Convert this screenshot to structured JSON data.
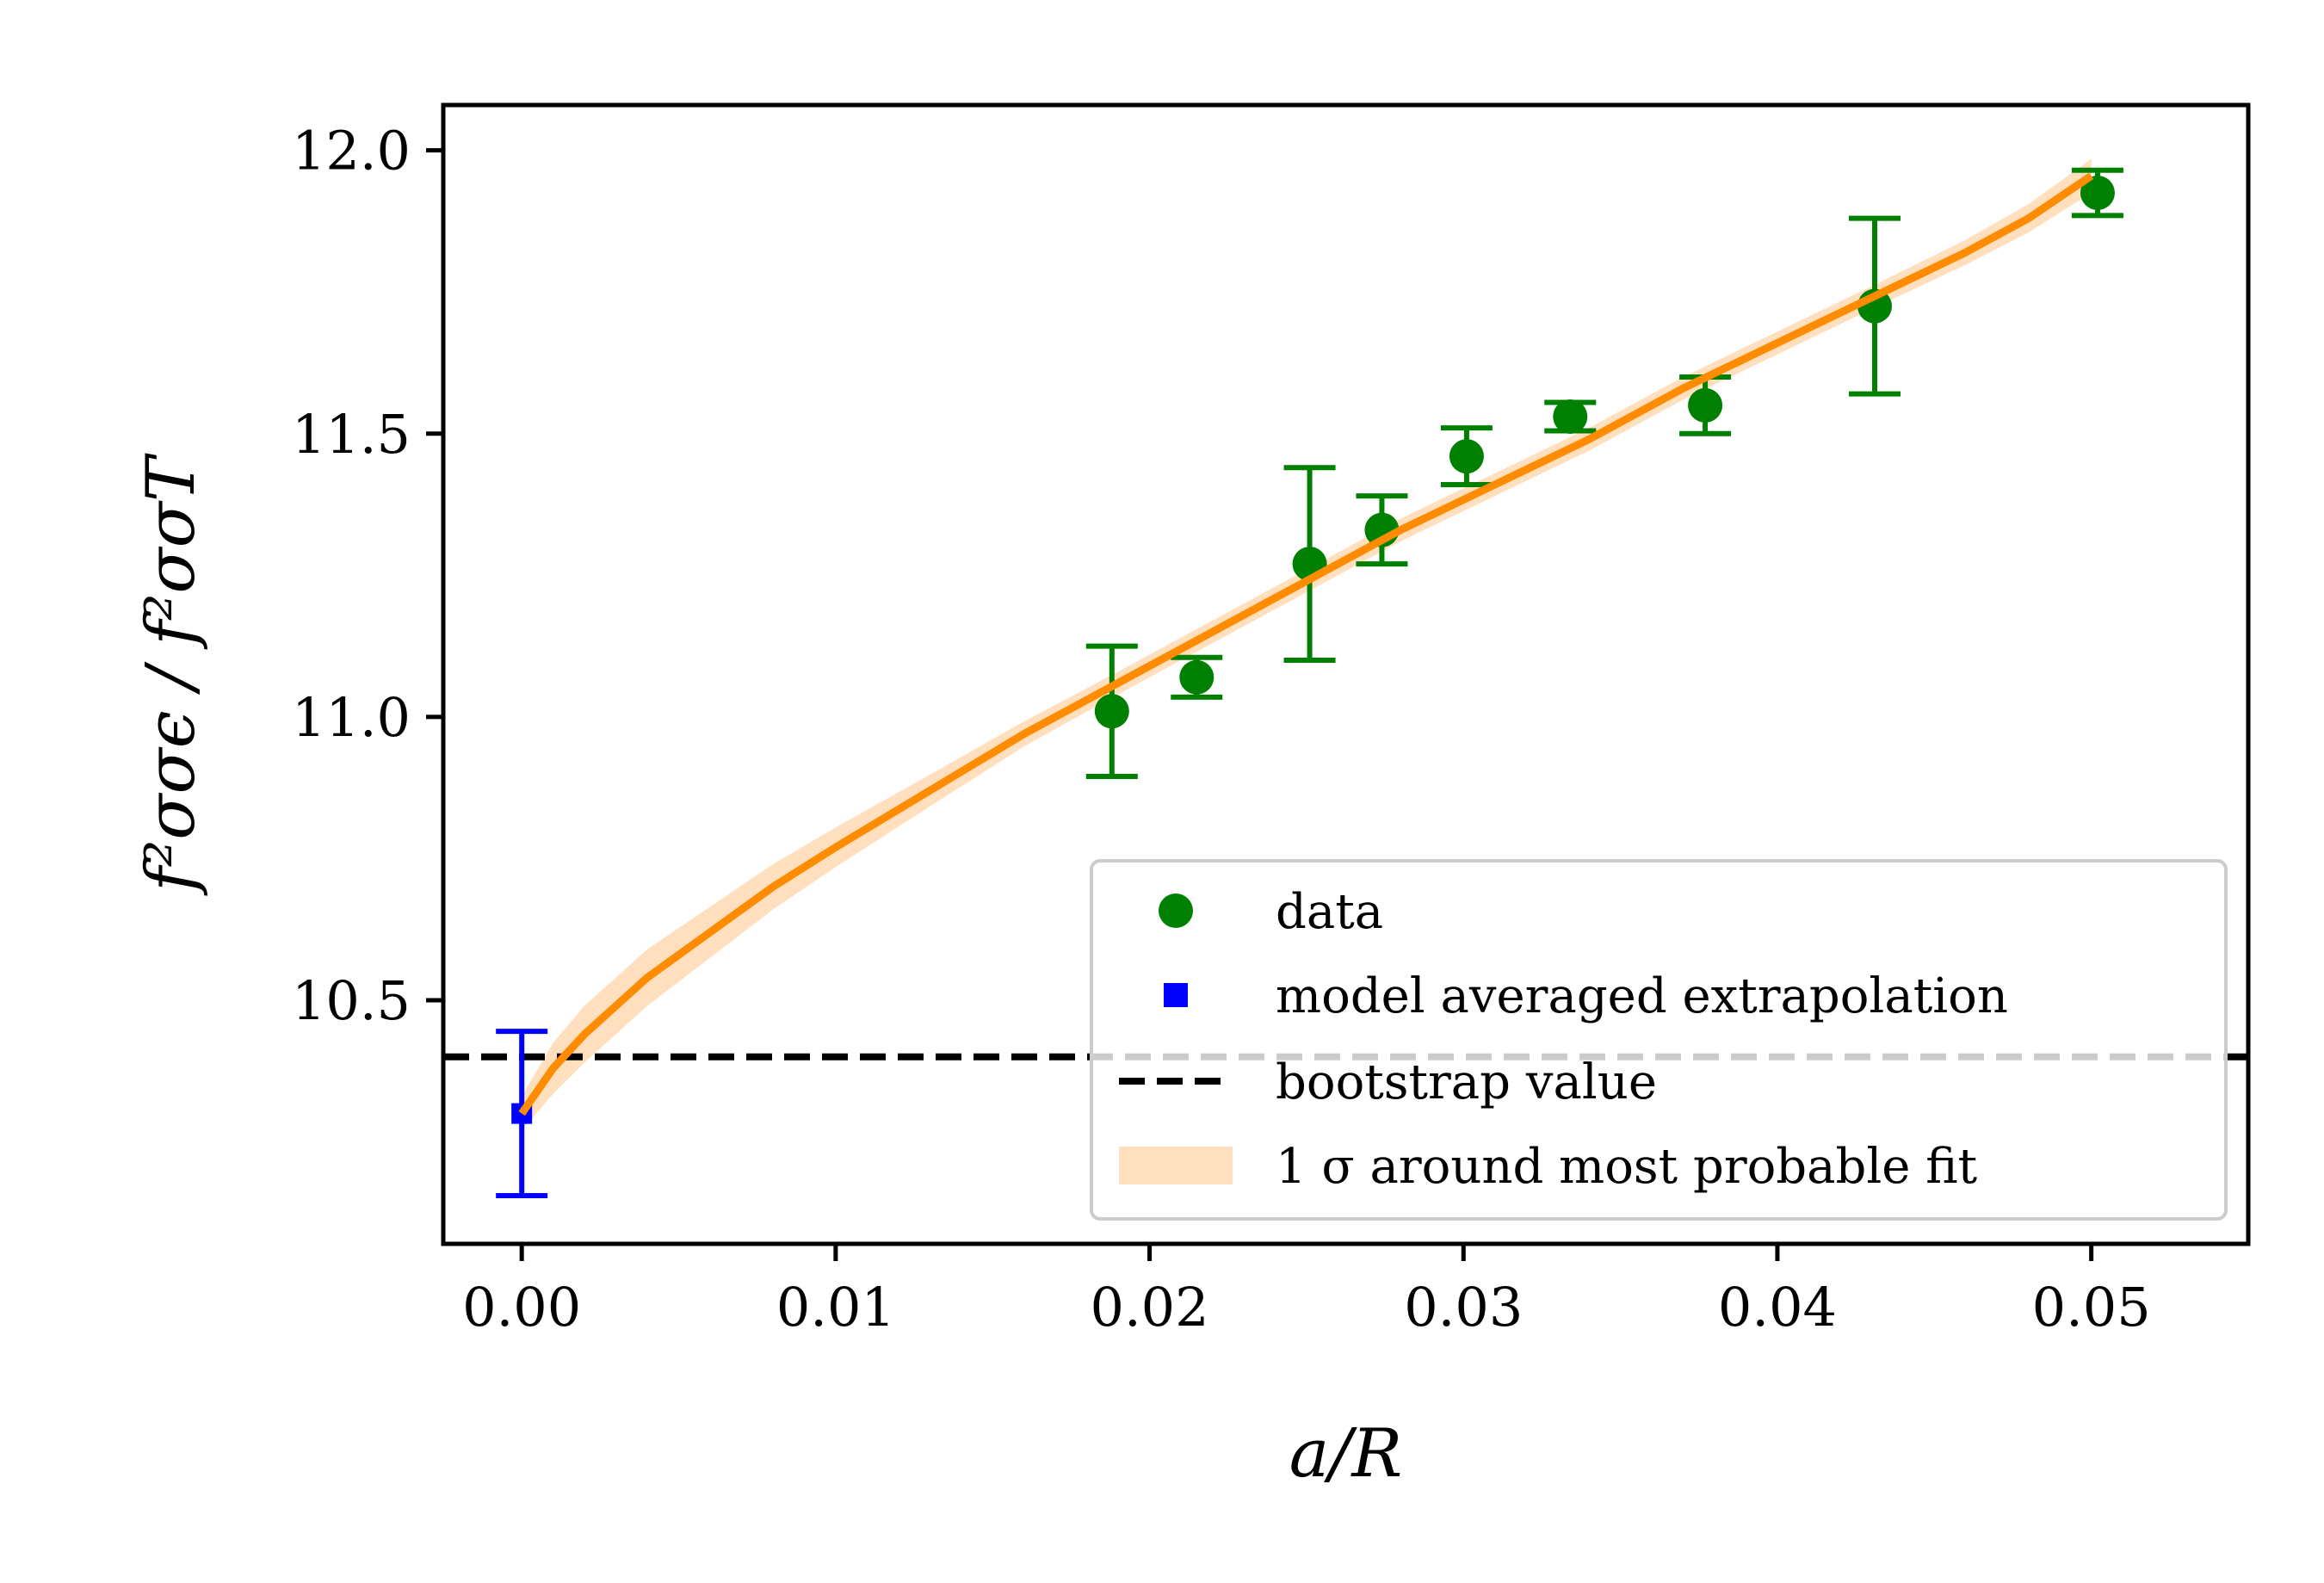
{
  "chart_data": {
    "type": "scatter",
    "xlabel": "a/R",
    "ylabel": "f²σσϵ / f²σσT",
    "xlim": [
      -0.0025,
      0.055
    ],
    "ylim": [
      10.07,
      12.08
    ],
    "x_ticks": [
      0.0,
      0.01,
      0.02,
      0.03,
      0.04,
      0.05
    ],
    "x_tick_labels": [
      "0.00",
      "0.01",
      "0.02",
      "0.03",
      "0.04",
      "0.05"
    ],
    "y_ticks": [
      10.5,
      11.0,
      11.5,
      12.0
    ],
    "y_tick_labels": [
      "10.5",
      "11.0",
      "11.5",
      "12.0"
    ],
    "legend_position": "lower-right",
    "series": [
      {
        "name": "data",
        "kind": "errorbar-points",
        "color": "#008000",
        "points": [
          {
            "x": 0.0188,
            "y": 11.01,
            "err": 0.115
          },
          {
            "x": 0.0215,
            "y": 11.07,
            "err": 0.035
          },
          {
            "x": 0.0251,
            "y": 11.27,
            "err": 0.17
          },
          {
            "x": 0.0274,
            "y": 11.33,
            "err": 0.06
          },
          {
            "x": 0.0301,
            "y": 11.46,
            "err": 0.05
          },
          {
            "x": 0.0334,
            "y": 11.53,
            "err": 0.025
          },
          {
            "x": 0.0377,
            "y": 11.55,
            "err": 0.05
          },
          {
            "x": 0.0431,
            "y": 11.725,
            "err": 0.155
          },
          {
            "x": 0.0502,
            "y": 11.925,
            "err": 0.04
          }
        ]
      },
      {
        "name": "model averaged extrapolation",
        "kind": "errorbar-square",
        "color": "#0000ff",
        "points": [
          {
            "x": 0.0,
            "y": 10.3,
            "err": 0.145
          }
        ]
      },
      {
        "name": "bootstrap value",
        "kind": "hline-dashed",
        "color": "#000000",
        "y": 10.4
      },
      {
        "name": "1 σ around most probable fit",
        "kind": "fit-band",
        "line_color": "#ff8c00",
        "band_color": "#ffdfbe",
        "x": [
          0.0,
          0.001,
          0.002,
          0.004,
          0.006,
          0.008,
          0.01,
          0.013,
          0.016,
          0.019,
          0.022,
          0.025,
          0.028,
          0.031,
          0.034,
          0.037,
          0.04,
          0.043,
          0.046,
          0.048,
          0.05
        ],
        "y": [
          10.3,
          10.38,
          10.44,
          10.54,
          10.62,
          10.7,
          10.77,
          10.87,
          10.97,
          11.06,
          11.15,
          11.24,
          11.33,
          11.41,
          11.49,
          11.58,
          11.66,
          11.74,
          11.82,
          11.88,
          11.955
        ],
        "band": [
          0.03,
          0.045,
          0.05,
          0.05,
          0.045,
          0.04,
          0.035,
          0.028,
          0.022,
          0.02,
          0.02,
          0.02,
          0.02,
          0.02,
          0.02,
          0.02,
          0.02,
          0.02,
          0.022,
          0.025,
          0.03
        ]
      }
    ]
  }
}
